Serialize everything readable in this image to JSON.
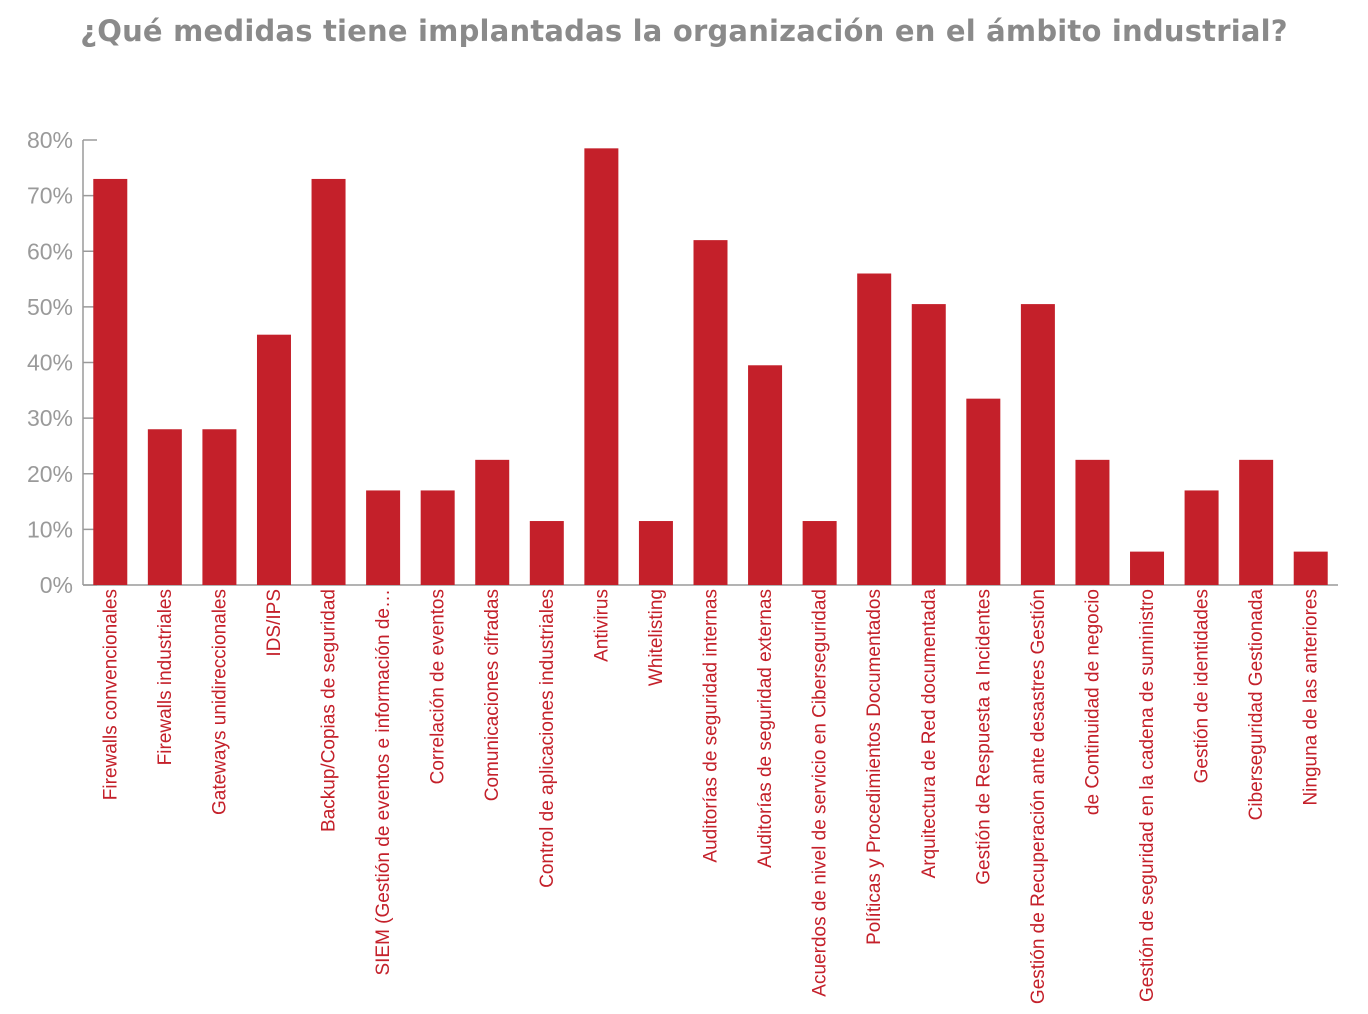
{
  "colors": {
    "bar": "#c4202a",
    "axis": "#9a9a9a",
    "label": "#c4202a",
    "title": "#8a8a8a"
  },
  "chart_data": {
    "type": "bar",
    "title": "¿Qué medidas tiene implantadas la organización en el ámbito industrial?",
    "xlabel": "",
    "ylabel": "",
    "ylim": [
      0,
      80
    ],
    "yticks": [
      "0%",
      "10%",
      "20%",
      "30%",
      "40%",
      "50%",
      "60%",
      "70%",
      "80%"
    ],
    "categories": [
      "Firewalls convencionales",
      "Firewalls industriales",
      "Gateways unidireccionales",
      "IDS/IPS",
      "Backup/Copias de seguridad",
      "SIEM (Gestión de eventos e información de…",
      "Correlación de eventos",
      "Comunicaciones cifradas",
      "Control de aplicaciones industriales",
      "Antivirus",
      "Whitelisting",
      "Auditorías de seguridad internas",
      "Auditorías de seguridad externas",
      "Acuerdos de nivel de servicio en Ciberseguridad",
      "Políticas y Procedimientos Documentados",
      "Arquitectura de Red documentada",
      "Gestión de Respuesta a Incidentes",
      "Gestión de Recuperación ante desastres Gestión",
      "de Continuidad de negocio",
      "Gestión de seguridad en la cadena de suministro",
      "Gestión de identidades",
      "Ciberseguridad Gestionada",
      "Ninguna de las anteriores"
    ],
    "values": [
      73,
      28,
      28,
      45,
      73,
      17,
      17,
      22.5,
      11.5,
      78.5,
      11.5,
      62,
      39.5,
      11.5,
      56,
      50.5,
      33.5,
      50.5,
      22.5,
      6,
      17,
      22.5,
      6
    ]
  }
}
